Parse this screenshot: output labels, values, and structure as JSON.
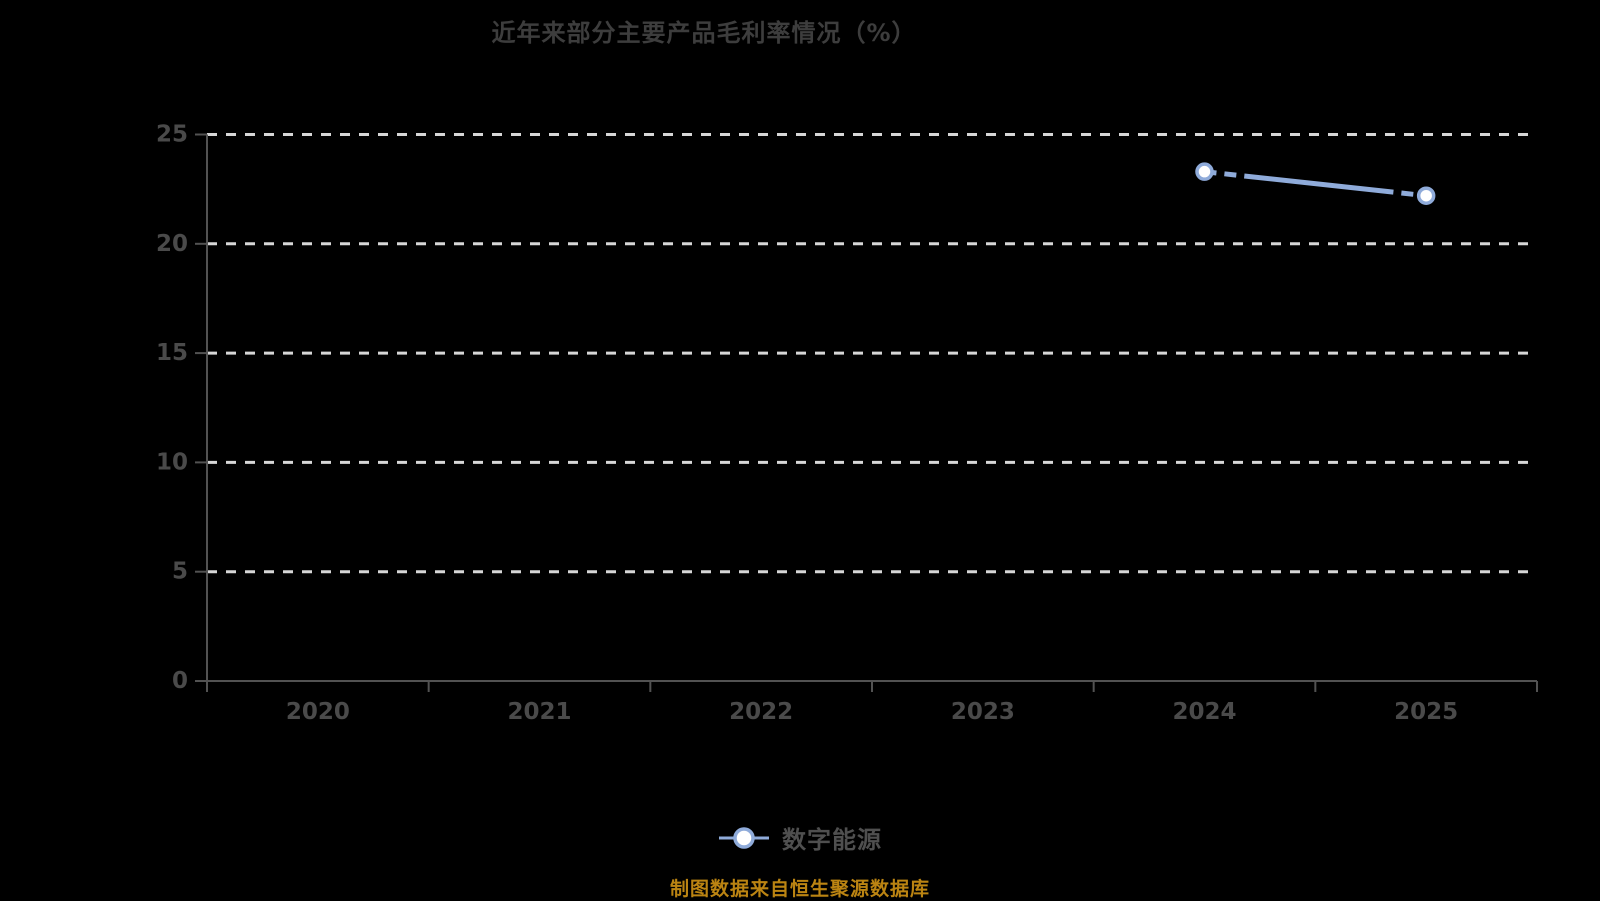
{
  "title": "近年来部分主要产品毛利率情况（%）",
  "legend": {
    "items": [
      {
        "label": "数字能源",
        "marker": "line-circle-marker"
      }
    ],
    "position": "bottom"
  },
  "source_note": "制图数据来自恒生聚源数据库",
  "colors": {
    "background": "#000000",
    "title_text": "#3d3d3d",
    "axis_text": "#4a4a4a",
    "axis_line": "#525252",
    "gridline": "#d6d6d6",
    "series_line": "#8fabda",
    "marker_fill": "#ffffff",
    "legend_text": "#4f4f4f",
    "source_text": "#bb8412"
  },
  "chart_data": {
    "type": "line",
    "title": "近年来部分主要产品毛利率情况（%）",
    "categories": [
      "2020",
      "2021",
      "2022",
      "2023",
      "2024",
      "2025"
    ],
    "series": [
      {
        "name": "数字能源",
        "values": [
          null,
          null,
          null,
          null,
          23.3,
          22.2
        ]
      }
    ],
    "ylim": [
      0,
      25
    ],
    "yticks": [
      0,
      5,
      10,
      15,
      20,
      25
    ],
    "xlabel": "",
    "ylabel": "",
    "grid": "horizontal-dashed",
    "line_style": "dashed",
    "marker": "circle-white-fill",
    "legend_position": "bottom"
  }
}
